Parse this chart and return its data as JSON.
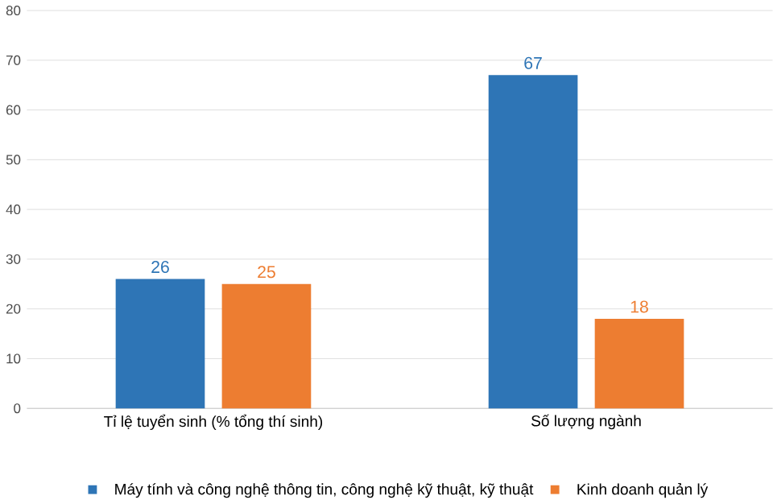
{
  "chart_data": {
    "type": "bar",
    "categories": [
      "Tỉ lệ tuyển sinh (% tổng thí sinh)",
      "Số lượng ngành"
    ],
    "series": [
      {
        "name": "Máy tính và công nghệ thông tin, công nghệ kỹ thuật, kỹ thuật",
        "color": "#2e75b6",
        "values": [
          26,
          67
        ]
      },
      {
        "name": "Kinh doanh quản lý",
        "color": "#ed7d31",
        "values": [
          25,
          18
        ]
      }
    ],
    "ylim": [
      0,
      80
    ],
    "yticks": [
      0,
      10,
      20,
      30,
      40,
      50,
      60,
      70,
      80
    ],
    "grid": "y",
    "legend": "bottom",
    "data_labels": true
  }
}
